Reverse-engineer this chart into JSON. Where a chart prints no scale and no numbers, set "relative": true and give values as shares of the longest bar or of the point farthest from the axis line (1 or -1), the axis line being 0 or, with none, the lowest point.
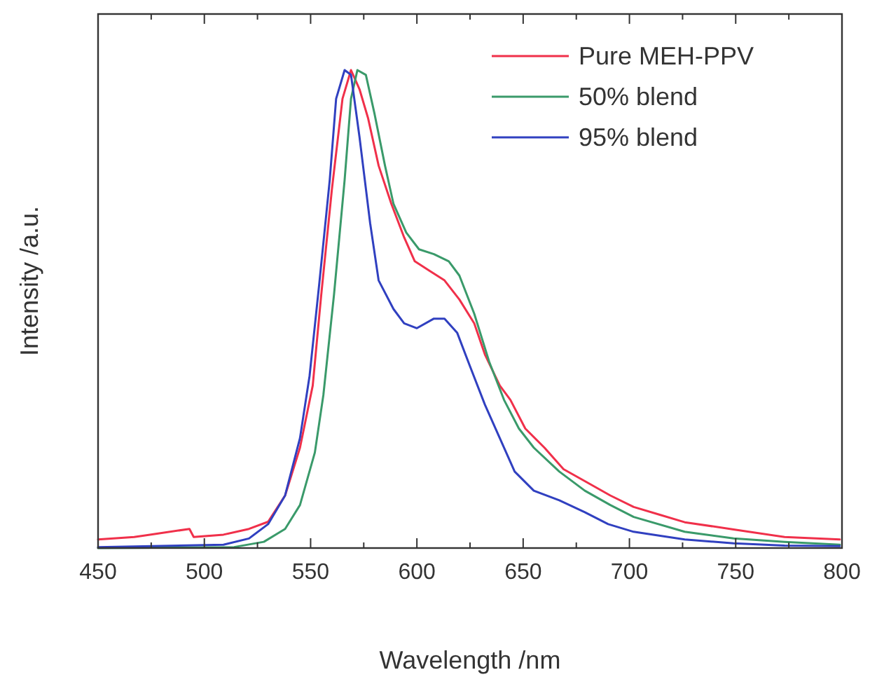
{
  "chart_data": {
    "type": "line",
    "xlabel": "Wavelength /nm",
    "ylabel": "Intensity /a.u.",
    "relative": true,
    "legend": "top right",
    "grid": false,
    "marker": "none",
    "line_style": "solid",
    "xlim": [
      450,
      800
    ],
    "xticks": [
      450,
      {
        "value": 475,
        "label": null
      },
      500,
      {
        "value": 525,
        "label": null
      },
      550,
      {
        "value": 575,
        "label": null
      },
      600,
      {
        "value": 625,
        "label": null
      },
      650,
      {
        "value": 675,
        "label": null
      },
      700,
      {
        "value": 725,
        "label": null
      },
      750,
      {
        "value": 775,
        "label": null
      },
      800
    ],
    "series": [
      {
        "name": "Pure MEH-PPV",
        "color": "#f0304a",
        "x": [
          450,
          467,
          493,
          495,
          509,
          521,
          530,
          538,
          545,
          551,
          555,
          560,
          565,
          569,
          573,
          577,
          582,
          588,
          594,
          599,
          606,
          613,
          620,
          627,
          632,
          639,
          644,
          651,
          660,
          669,
          679,
          691,
          702,
          714,
          726,
          749,
          773,
          799
        ],
        "values": [
          0.018,
          0.023,
          0.04,
          0.023,
          0.028,
          0.04,
          0.055,
          0.11,
          0.21,
          0.34,
          0.53,
          0.75,
          0.94,
          1.0,
          0.96,
          0.9,
          0.8,
          0.72,
          0.65,
          0.6,
          0.58,
          0.56,
          0.52,
          0.47,
          0.405,
          0.34,
          0.31,
          0.25,
          0.21,
          0.165,
          0.14,
          0.11,
          0.086,
          0.07,
          0.054,
          0.039,
          0.023,
          0.018
        ]
      },
      {
        "name": "50% blend",
        "color": "#3a9a6a",
        "x": [
          450,
          514,
          528,
          538,
          545,
          552,
          556,
          561,
          566,
          569,
          572,
          576,
          580,
          585,
          589,
          595,
          601,
          608,
          615,
          620,
          627,
          634,
          641,
          648,
          655,
          667,
          679,
          691,
          702,
          726,
          749,
          773,
          799
        ],
        "values": [
          0,
          0.002,
          0.013,
          0.04,
          0.09,
          0.2,
          0.32,
          0.53,
          0.77,
          0.94,
          1.0,
          0.99,
          0.91,
          0.8,
          0.72,
          0.66,
          0.625,
          0.615,
          0.6,
          0.57,
          0.49,
          0.39,
          0.31,
          0.25,
          0.21,
          0.16,
          0.12,
          0.09,
          0.065,
          0.034,
          0.02,
          0.013,
          0.007
        ]
      },
      {
        "name": "95% blend",
        "color": "#3040c0",
        "x": [
          450,
          509,
          521,
          530,
          538,
          545,
          549.5,
          554,
          559,
          562,
          566,
          569,
          573,
          578,
          582,
          589,
          594,
          600,
          608,
          613,
          619,
          625,
          632,
          639,
          646,
          655,
          667,
          679,
          690,
          702,
          726,
          749,
          773,
          799
        ],
        "values": [
          0.002,
          0.007,
          0.02,
          0.05,
          0.11,
          0.23,
          0.36,
          0.55,
          0.77,
          0.94,
          1.0,
          0.99,
          0.86,
          0.68,
          0.56,
          0.5,
          0.47,
          0.46,
          0.48,
          0.48,
          0.45,
          0.38,
          0.3,
          0.23,
          0.16,
          0.12,
          0.1,
          0.075,
          0.05,
          0.034,
          0.018,
          0.01,
          0.005,
          0.004
        ]
      }
    ]
  }
}
